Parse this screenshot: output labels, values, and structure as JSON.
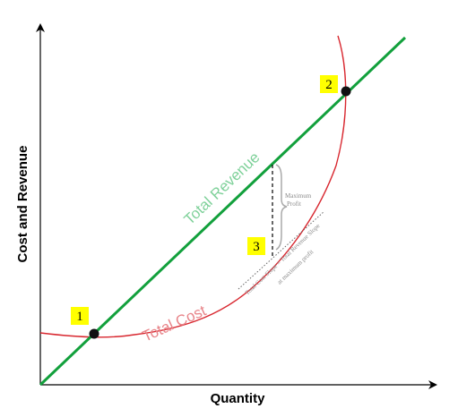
{
  "axes": {
    "x_title": "Quantity",
    "y_title": "Cost and Revenue"
  },
  "curves": {
    "revenue_label": "Total Revenue",
    "cost_label": "Total Cost"
  },
  "markers": [
    {
      "number": "1"
    },
    {
      "number": "2"
    },
    {
      "number": "3"
    }
  ],
  "annotations": {
    "max_profit_line1": "Maximum",
    "max_profit_line2": "Profit",
    "slope_line1": "Total Cost Slope = Total Revenue Slope",
    "slope_line2": "at maximum profit"
  },
  "colors": {
    "revenue": "#12a03c",
    "cost": "#d8262e",
    "revenue_label": "#7fd19a",
    "cost_label": "#e8858a",
    "marker_box": "#ffff00",
    "point": "#111111",
    "brace": "#aaaaaa"
  }
}
